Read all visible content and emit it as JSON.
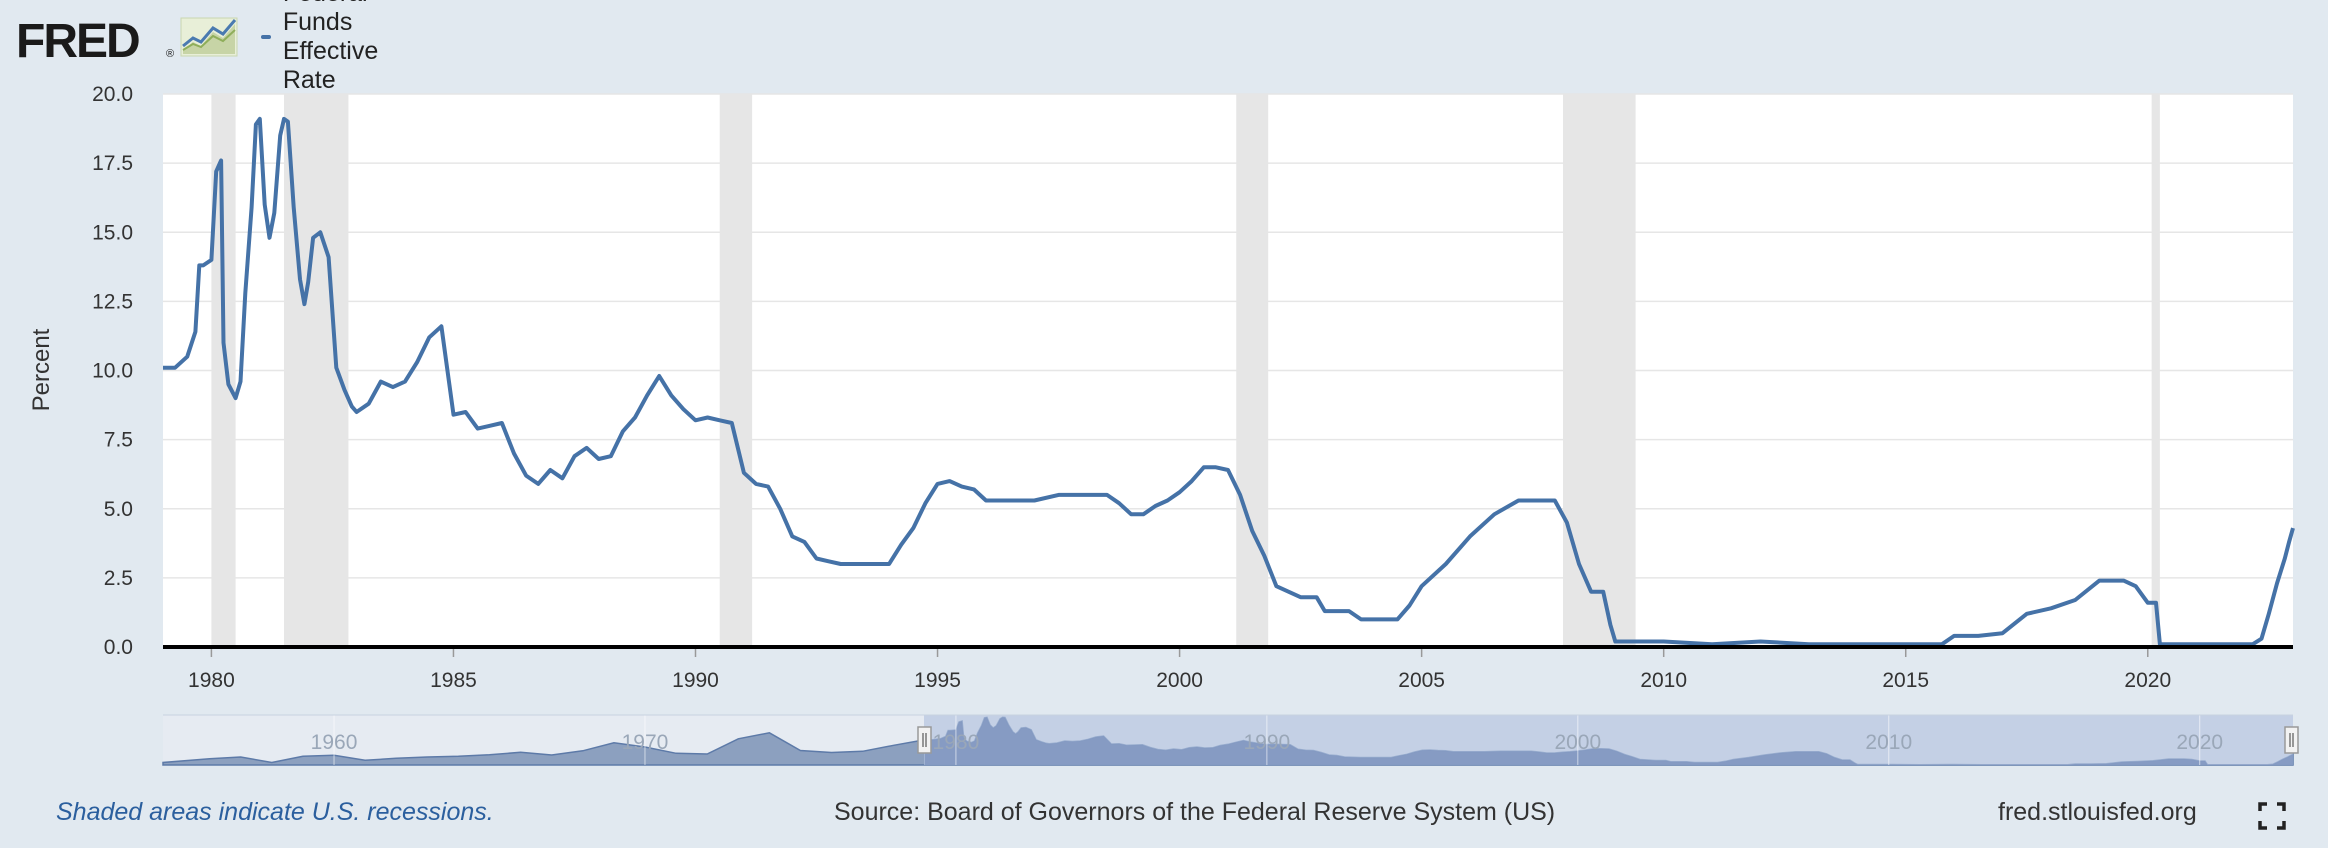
{
  "header": {
    "logo_text": "FRED",
    "logo_reg": "®",
    "logo_icon": "chart-logo-icon",
    "legend_label": "Federal Funds Effective Rate"
  },
  "footer": {
    "recession_note": "Shaded areas indicate U.S. recessions.",
    "source": "Source: Board of Governors of the Federal Reserve System (US)",
    "url": "fred.stlouisfed.org",
    "fullscreen_icon": "fullscreen-icon"
  },
  "colors": {
    "background": "#e1e9f0",
    "plot_background": "#ffffff",
    "series": "#4572a7",
    "recession": "#e6e6e6",
    "navigator_fill": "#8ca0bf",
    "navigator_selection": "#b5c4e0"
  },
  "chart_data": {
    "type": "line",
    "ylabel": "Percent",
    "xlim": [
      1979.0,
      2023.0
    ],
    "ylim": [
      0,
      20
    ],
    "yticks": [
      "0.0",
      "2.5",
      "5.0",
      "7.5",
      "10.0",
      "12.5",
      "15.0",
      "17.5",
      "20.0"
    ],
    "xticks": [
      "1980",
      "1985",
      "1990",
      "1995",
      "2000",
      "2005",
      "2010",
      "2015",
      "2020"
    ],
    "grid": true,
    "recessions": [
      [
        1980.0,
        1980.5
      ],
      [
        1981.5,
        1982.83
      ],
      [
        1990.5,
        1991.17
      ],
      [
        2001.17,
        2001.83
      ],
      [
        2007.92,
        2009.42
      ],
      [
        2020.08,
        2020.25
      ]
    ],
    "series": [
      {
        "name": "Federal Funds Effective Rate",
        "x": [
          1979.0,
          1979.25,
          1979.5,
          1979.67,
          1979.75,
          1979.83,
          1980.0,
          1980.1,
          1980.2,
          1980.25,
          1980.35,
          1980.5,
          1980.6,
          1980.7,
          1980.83,
          1980.92,
          1981.0,
          1981.1,
          1981.2,
          1981.3,
          1981.42,
          1981.5,
          1981.58,
          1981.7,
          1981.83,
          1981.92,
          1982.0,
          1982.1,
          1982.25,
          1982.42,
          1982.58,
          1982.75,
          1982.9,
          1983.0,
          1983.25,
          1983.5,
          1983.75,
          1984.0,
          1984.25,
          1984.5,
          1984.75,
          1985.0,
          1985.25,
          1985.5,
          1985.75,
          1986.0,
          1986.25,
          1986.5,
          1986.75,
          1987.0,
          1987.25,
          1987.5,
          1987.75,
          1988.0,
          1988.25,
          1988.5,
          1988.75,
          1989.0,
          1989.25,
          1989.5,
          1989.75,
          1990.0,
          1990.25,
          1990.5,
          1990.75,
          1991.0,
          1991.25,
          1991.5,
          1991.75,
          1992.0,
          1992.25,
          1992.5,
          1992.75,
          1993.0,
          1993.5,
          1994.0,
          1994.25,
          1994.5,
          1994.75,
          1995.0,
          1995.25,
          1995.5,
          1995.75,
          1996.0,
          1996.5,
          1997.0,
          1997.5,
          1998.0,
          1998.5,
          1998.75,
          1999.0,
          1999.25,
          1999.5,
          1999.75,
          2000.0,
          2000.25,
          2000.5,
          2000.75,
          2001.0,
          2001.25,
          2001.5,
          2001.75,
          2002.0,
          2002.5,
          2002.83,
          2003.0,
          2003.5,
          2003.75,
          2004.0,
          2004.5,
          2004.75,
          2005.0,
          2005.5,
          2006.0,
          2006.5,
          2007.0,
          2007.5,
          2007.75,
          2008.0,
          2008.25,
          2008.5,
          2008.75,
          2008.9,
          2009.0,
          2010.0,
          2011.0,
          2012.0,
          2013.0,
          2014.0,
          2015.0,
          2015.75,
          2016.0,
          2016.5,
          2017.0,
          2017.5,
          2018.0,
          2018.5,
          2019.0,
          2019.5,
          2019.75,
          2020.0,
          2020.17,
          2020.25,
          2020.5,
          2021.0,
          2021.5,
          2022.0,
          2022.17,
          2022.35,
          2022.5,
          2022.67,
          2022.83,
          2022.92,
          2023.0
        ],
        "values": [
          10.1,
          10.1,
          10.5,
          11.4,
          13.8,
          13.8,
          14.0,
          17.2,
          17.6,
          11.0,
          9.5,
          9.0,
          9.6,
          12.8,
          15.9,
          18.9,
          19.1,
          16.0,
          14.8,
          15.7,
          18.5,
          19.1,
          19.0,
          15.9,
          13.3,
          12.4,
          13.2,
          14.8,
          15.0,
          14.1,
          10.1,
          9.3,
          8.7,
          8.5,
          8.8,
          9.6,
          9.4,
          9.6,
          10.3,
          11.2,
          11.6,
          8.4,
          8.5,
          7.9,
          8.0,
          8.1,
          7.0,
          6.2,
          5.9,
          6.4,
          6.1,
          6.9,
          7.2,
          6.8,
          6.9,
          7.8,
          8.3,
          9.1,
          9.8,
          9.1,
          8.6,
          8.2,
          8.3,
          8.2,
          8.1,
          6.3,
          5.9,
          5.8,
          5.0,
          4.0,
          3.8,
          3.2,
          3.1,
          3.0,
          3.0,
          3.0,
          3.7,
          4.3,
          5.2,
          5.9,
          6.0,
          5.8,
          5.7,
          5.3,
          5.3,
          5.3,
          5.5,
          5.5,
          5.5,
          5.2,
          4.8,
          4.8,
          5.1,
          5.3,
          5.6,
          6.0,
          6.5,
          6.5,
          6.4,
          5.5,
          4.2,
          3.3,
          2.2,
          1.8,
          1.8,
          1.3,
          1.3,
          1.0,
          1.0,
          1.0,
          1.5,
          2.2,
          3.0,
          4.0,
          4.8,
          5.3,
          5.3,
          5.3,
          4.5,
          3.0,
          2.0,
          2.0,
          0.8,
          0.2,
          0.2,
          0.1,
          0.2,
          0.1,
          0.1,
          0.1,
          0.1,
          0.4,
          0.4,
          0.5,
          1.2,
          1.4,
          1.7,
          2.4,
          2.4,
          2.2,
          1.6,
          1.6,
          0.1,
          0.1,
          0.1,
          0.1,
          0.1,
          0.1,
          0.3,
          1.2,
          2.3,
          3.2,
          3.8,
          4.3
        ]
      }
    ],
    "navigator": {
      "xticks": [
        "1960",
        "1970",
        "1980",
        "1990",
        "2000",
        "2010",
        "2020"
      ]
    }
  }
}
